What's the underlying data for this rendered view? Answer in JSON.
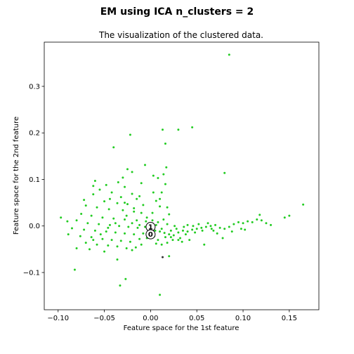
{
  "chart_data": {
    "type": "scatter",
    "suptitle": "EM using ICA n_clusters = 2",
    "title": "The visualization of the clustered data.",
    "xlabel": "Feature space for the 1st feature",
    "ylabel": "Feature space for the 2nd feature",
    "xlim": [
      -0.115,
      0.182
    ],
    "ylim": [
      -0.18,
      0.395
    ],
    "xticks": [
      "−0.10",
      "−0.05",
      "0.00",
      "0.05",
      "0.10",
      "0.15"
    ],
    "yticks": [
      "−0.1",
      "0.0",
      "0.1",
      "0.2",
      "0.3"
    ],
    "xtick_values": [
      -0.1,
      -0.05,
      0.0,
      0.05,
      0.1,
      0.15
    ],
    "ytick_values": [
      -0.1,
      0.0,
      0.1,
      0.2,
      0.3
    ],
    "grid": false,
    "colors": {
      "cluster": "#22cc22",
      "outlier": "#333333",
      "center_fill": "#ffffff",
      "center_edge": "#000000"
    },
    "centers": [
      {
        "label": "1",
        "x": 0.0,
        "y": -0.002
      },
      {
        "label": "0",
        "x": 0.0,
        "y": -0.018
      }
    ],
    "series": [
      {
        "values": [
          [
            0.085,
            0.368
          ],
          [
            0.045,
            0.212
          ],
          [
            0.03,
            0.207
          ],
          [
            0.013,
            0.207
          ],
          [
            -0.022,
            0.196
          ],
          [
            0.016,
            0.177
          ],
          [
            -0.04,
            0.169
          ],
          [
            0.08,
            0.114
          ],
          [
            0.017,
            0.126
          ],
          [
            -0.006,
            0.131
          ],
          [
            -0.025,
            0.122
          ],
          [
            -0.02,
            0.116
          ],
          [
            0.003,
            0.108
          ],
          [
            0.014,
            0.111
          ],
          [
            -0.03,
            0.104
          ],
          [
            -0.035,
            0.094
          ],
          [
            -0.06,
            0.097
          ],
          [
            -0.048,
            0.088
          ],
          [
            -0.028,
            0.084
          ],
          [
            -0.01,
            0.092
          ],
          [
            0.008,
            0.103
          ],
          [
            -0.055,
            0.078
          ],
          [
            -0.042,
            0.072
          ],
          [
            -0.02,
            0.069
          ],
          [
            0.003,
            0.072
          ],
          [
            -0.062,
            0.068
          ],
          [
            -0.032,
            0.062
          ],
          [
            -0.015,
            0.058
          ],
          [
            -0.05,
            0.053
          ],
          [
            -0.036,
            0.049
          ],
          [
            -0.025,
            0.047
          ],
          [
            -0.008,
            0.045
          ],
          [
            0.01,
            0.042
          ],
          [
            -0.07,
            0.044
          ],
          [
            -0.058,
            0.04
          ],
          [
            -0.045,
            0.036
          ],
          [
            -0.03,
            0.034
          ],
          [
            -0.018,
            0.031
          ],
          [
            0.002,
            0.028
          ],
          [
            0.02,
            0.025
          ],
          [
            -0.075,
            0.026
          ],
          [
            -0.064,
            0.022
          ],
          [
            -0.052,
            0.018
          ],
          [
            -0.04,
            0.016
          ],
          [
            -0.028,
            0.014
          ],
          [
            -0.015,
            0.012
          ],
          [
            -0.005,
            0.01
          ],
          [
            0.008,
            0.008
          ],
          [
            -0.09,
            0.01
          ],
          [
            -0.097,
            0.018
          ],
          [
            -0.08,
            0.012
          ],
          [
            -0.068,
            0.006
          ],
          [
            -0.056,
            0.004
          ],
          [
            -0.044,
            0.002
          ],
          [
            -0.034,
            0.0
          ],
          [
            -0.024,
            -0.002
          ],
          [
            -0.014,
            -0.004
          ],
          [
            -0.006,
            -0.002
          ],
          [
            -0.085,
            -0.005
          ],
          [
            -0.072,
            -0.008
          ],
          [
            -0.06,
            -0.01
          ],
          [
            -0.048,
            -0.012
          ],
          [
            -0.038,
            -0.014
          ],
          [
            -0.028,
            -0.016
          ],
          [
            -0.018,
            -0.018
          ],
          [
            -0.008,
            -0.016
          ],
          [
            -0.089,
            -0.018
          ],
          [
            -0.076,
            -0.022
          ],
          [
            -0.064,
            -0.024
          ],
          [
            -0.052,
            -0.028
          ],
          [
            -0.042,
            -0.03
          ],
          [
            -0.032,
            -0.032
          ],
          [
            -0.022,
            -0.034
          ],
          [
            -0.012,
            -0.028
          ],
          [
            -0.07,
            -0.036
          ],
          [
            -0.058,
            -0.04
          ],
          [
            -0.046,
            -0.042
          ],
          [
            -0.036,
            -0.044
          ],
          [
            -0.026,
            -0.048
          ],
          [
            -0.016,
            -0.046
          ],
          [
            -0.08,
            -0.048
          ],
          [
            -0.066,
            -0.05
          ],
          [
            -0.05,
            -0.055
          ],
          [
            -0.036,
            -0.072
          ],
          [
            -0.082,
            -0.094
          ],
          [
            -0.033,
            -0.128
          ],
          [
            -0.027,
            -0.114
          ],
          [
            0.01,
            -0.148
          ],
          [
            0.02,
            -0.065
          ],
          [
            0.005,
            -0.01
          ],
          [
            0.01,
            -0.012
          ],
          [
            0.015,
            -0.015
          ],
          [
            0.02,
            -0.018
          ],
          [
            0.025,
            -0.02
          ],
          [
            0.03,
            -0.014
          ],
          [
            0.035,
            -0.01
          ],
          [
            0.04,
            -0.012
          ],
          [
            0.045,
            -0.008
          ],
          [
            0.05,
            -0.006
          ],
          [
            0.055,
            -0.004
          ],
          [
            0.06,
            -0.002
          ],
          [
            0.065,
            0.0
          ],
          [
            0.07,
            0.002
          ],
          [
            0.075,
            -0.004
          ],
          [
            0.08,
            -0.006
          ],
          [
            0.085,
            -0.002
          ],
          [
            0.09,
            0.004
          ],
          [
            0.095,
            0.008
          ],
          [
            0.1,
            0.006
          ],
          [
            0.105,
            0.01
          ],
          [
            0.11,
            0.008
          ],
          [
            0.115,
            0.014
          ],
          [
            0.12,
            0.012
          ],
          [
            0.125,
            0.006
          ],
          [
            0.13,
            0.002
          ],
          [
            0.145,
            0.018
          ],
          [
            0.15,
            0.022
          ],
          [
            0.165,
            0.046
          ],
          [
            0.118,
            0.024
          ],
          [
            0.098,
            -0.006
          ],
          [
            0.078,
            -0.026
          ],
          [
            0.058,
            -0.04
          ],
          [
            0.042,
            -0.03
          ],
          [
            0.032,
            -0.026
          ],
          [
            0.024,
            -0.03
          ],
          [
            0.018,
            -0.036
          ],
          [
            0.012,
            -0.04
          ],
          [
            0.008,
            -0.03
          ],
          [
            0.004,
            -0.022
          ],
          [
            0.022,
            -0.01
          ],
          [
            0.028,
            -0.006
          ],
          [
            0.036,
            -0.002
          ],
          [
            0.046,
            0.0
          ],
          [
            0.052,
            0.004
          ],
          [
            0.062,
            0.006
          ],
          [
            0.068,
            -0.01
          ],
          [
            0.072,
            -0.016
          ],
          [
            0.088,
            -0.012
          ],
          [
            0.102,
            -0.008
          ],
          [
            0.014,
            0.014
          ],
          [
            0.018,
            0.004
          ],
          [
            0.006,
            0.002
          ],
          [
            0.026,
            0.0
          ],
          [
            0.04,
            0.002
          ],
          [
            0.01,
            0.058
          ],
          [
            0.012,
            0.072
          ],
          [
            0.016,
            0.09
          ],
          [
            0.018,
            0.04
          ],
          [
            0.006,
            0.054
          ],
          [
            0.034,
            -0.034
          ],
          [
            0.038,
            -0.018
          ],
          [
            0.048,
            -0.014
          ],
          [
            0.056,
            -0.01
          ],
          [
            0.066,
            -0.006
          ],
          [
            0.016,
            -0.024
          ],
          [
            0.022,
            -0.024
          ],
          [
            0.03,
            -0.03
          ],
          [
            0.012,
            -0.006
          ],
          [
            0.006,
            -0.038
          ],
          [
            -0.004,
            -0.026
          ],
          [
            -0.01,
            -0.04
          ],
          [
            -0.02,
            -0.052
          ],
          [
            -0.002,
            -0.008
          ],
          [
            -0.012,
            0.002
          ],
          [
            -0.02,
            0.006
          ],
          [
            -0.026,
            0.022
          ],
          [
            -0.018,
            0.038
          ],
          [
            -0.01,
            0.028
          ],
          [
            -0.004,
            0.018
          ],
          [
            0.002,
            0.012
          ],
          [
            -0.038,
            0.006
          ],
          [
            -0.046,
            -0.004
          ],
          [
            -0.054,
            -0.018
          ],
          [
            -0.062,
            -0.03
          ],
          [
            -0.072,
            0.056
          ],
          [
            -0.062,
            0.086
          ],
          [
            -0.044,
            0.058
          ],
          [
            -0.028,
            0.05
          ],
          [
            -0.012,
            0.064
          ]
        ]
      }
    ],
    "outliers": [
      [
        0.013,
        -0.067
      ]
    ]
  }
}
